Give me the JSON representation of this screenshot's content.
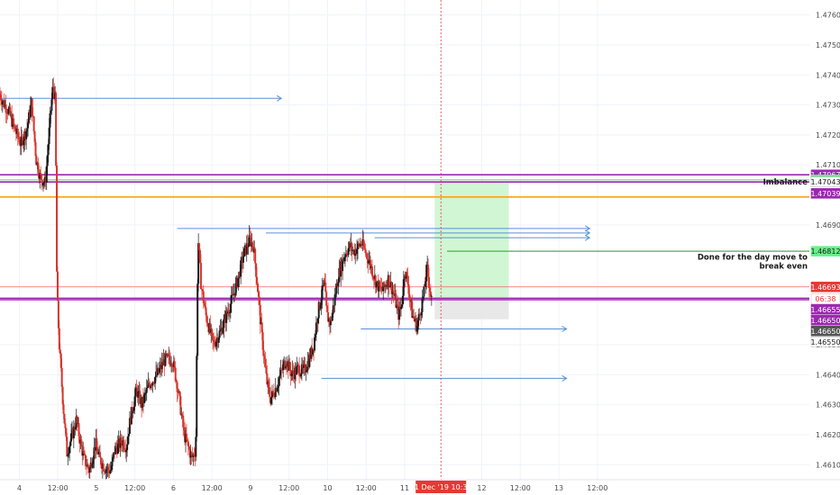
{
  "chart_data": {
    "type": "candlestick",
    "y_axis": {
      "range": [
        1.4605,
        1.4765
      ],
      "ticks": [
        {
          "value": 1.476,
          "label": "1.47600"
        },
        {
          "value": 1.475,
          "label": "1.47500"
        },
        {
          "value": 1.474,
          "label": "1.47400"
        },
        {
          "value": 1.473,
          "label": "1.47300"
        },
        {
          "value": 1.472,
          "label": "1.47200"
        },
        {
          "value": 1.471,
          "label": "1.47100"
        },
        {
          "value": 1.469,
          "label": "1.46900"
        },
        {
          "value": 1.465,
          "label": "1.46500"
        },
        {
          "value": 1.464,
          "label": "1.46400"
        },
        {
          "value": 1.463,
          "label": "1.46300"
        },
        {
          "value": 1.462,
          "label": "1.46200"
        },
        {
          "value": 1.461,
          "label": "1.46100"
        }
      ]
    },
    "x_axis": {
      "range": [
        0,
        10.5
      ],
      "ticks": [
        {
          "t": 0.25,
          "label": "4"
        },
        {
          "t": 0.75,
          "label": "12:00"
        },
        {
          "t": 1.25,
          "label": "5"
        },
        {
          "t": 1.75,
          "label": "12:00"
        },
        {
          "t": 2.25,
          "label": "6"
        },
        {
          "t": 2.75,
          "label": "12:00"
        },
        {
          "t": 3.25,
          "label": "9"
        },
        {
          "t": 3.75,
          "label": "12:00"
        },
        {
          "t": 4.25,
          "label": "10"
        },
        {
          "t": 4.75,
          "label": "12:00"
        },
        {
          "t": 5.25,
          "label": "11"
        },
        {
          "t": 6.25,
          "label": "12"
        },
        {
          "t": 6.75,
          "label": "12:00"
        },
        {
          "t": 7.25,
          "label": "13"
        },
        {
          "t": 7.75,
          "label": "12:00"
        }
      ],
      "cursor": {
        "t": 5.72,
        "label": "11 Dec '19   10:30"
      }
    },
    "price_path": [
      [
        0.0,
        1.4734
      ],
      [
        0.05,
        1.4731
      ],
      [
        0.12,
        1.4728
      ],
      [
        0.2,
        1.4722
      ],
      [
        0.28,
        1.4717
      ],
      [
        0.36,
        1.4722
      ],
      [
        0.42,
        1.4731
      ],
      [
        0.48,
        1.4712
      ],
      [
        0.53,
        1.4706
      ],
      [
        0.6,
        1.4704
      ],
      [
        0.66,
        1.4725
      ],
      [
        0.7,
        1.4737
      ],
      [
        0.73,
        1.4731
      ],
      [
        0.75,
        1.4668
      ],
      [
        0.78,
        1.465
      ],
      [
        0.83,
        1.463
      ],
      [
        0.88,
        1.4614
      ],
      [
        0.95,
        1.462
      ],
      [
        1.0,
        1.4625
      ],
      [
        1.05,
        1.4618
      ],
      [
        1.1,
        1.4612
      ],
      [
        1.17,
        1.4608
      ],
      [
        1.25,
        1.4617
      ],
      [
        1.3,
        1.4612
      ],
      [
        1.37,
        1.4609
      ],
      [
        1.45,
        1.4608
      ],
      [
        1.5,
        1.4615
      ],
      [
        1.6,
        1.4618
      ],
      [
        1.65,
        1.4616
      ],
      [
        1.7,
        1.4625
      ],
      [
        1.78,
        1.4635
      ],
      [
        1.85,
        1.463
      ],
      [
        1.95,
        1.4637
      ],
      [
        2.05,
        1.464
      ],
      [
        2.15,
        1.4645
      ],
      [
        2.25,
        1.4645
      ],
      [
        2.32,
        1.4635
      ],
      [
        2.4,
        1.462
      ],
      [
        2.5,
        1.4612
      ],
      [
        2.55,
        1.4615
      ],
      [
        2.58,
        1.4686
      ],
      [
        2.62,
        1.467
      ],
      [
        2.68,
        1.466
      ],
      [
        2.78,
        1.465
      ],
      [
        2.88,
        1.4655
      ],
      [
        2.95,
        1.466
      ],
      [
        3.02,
        1.4665
      ],
      [
        3.1,
        1.4672
      ],
      [
        3.17,
        1.468
      ],
      [
        3.25,
        1.4685
      ],
      [
        3.3,
        1.4683
      ],
      [
        3.35,
        1.467
      ],
      [
        3.4,
        1.4655
      ],
      [
        3.47,
        1.4638
      ],
      [
        3.52,
        1.4632
      ],
      [
        3.58,
        1.4635
      ],
      [
        3.65,
        1.464
      ],
      [
        3.72,
        1.4645
      ],
      [
        3.8,
        1.464
      ],
      [
        3.88,
        1.4642
      ],
      [
        3.95,
        1.4641
      ],
      [
        4.02,
        1.4645
      ],
      [
        4.08,
        1.465
      ],
      [
        4.13,
        1.466
      ],
      [
        4.17,
        1.4665
      ],
      [
        4.22,
        1.4671
      ],
      [
        4.25,
        1.466
      ],
      [
        4.3,
        1.4657
      ],
      [
        4.35,
        1.4665
      ],
      [
        4.4,
        1.4673
      ],
      [
        4.48,
        1.468
      ],
      [
        4.55,
        1.4683
      ],
      [
        4.6,
        1.4681
      ],
      [
        4.7,
        1.4684
      ],
      [
        4.8,
        1.4678
      ],
      [
        4.9,
        1.467
      ],
      [
        4.97,
        1.4668
      ],
      [
        5.05,
        1.4672
      ],
      [
        5.12,
        1.4667
      ],
      [
        5.18,
        1.466
      ],
      [
        5.22,
        1.4663
      ],
      [
        5.26,
        1.4675
      ],
      [
        5.3,
        1.4671
      ],
      [
        5.36,
        1.466
      ],
      [
        5.42,
        1.4656
      ],
      [
        5.47,
        1.4662
      ],
      [
        5.51,
        1.4667
      ],
      [
        5.55,
        1.4676
      ],
      [
        5.58,
        1.467
      ],
      [
        5.61,
        1.4665
      ]
    ],
    "horizontal_lines": [
      {
        "price": 1.47067,
        "color": "#9c27b0",
        "width": 1.6
      },
      {
        "price": 1.47043,
        "color": "#9c27b0",
        "width": 1.6
      },
      {
        "price": 1.4705,
        "color": "#4caf50",
        "width": 0.7
      },
      {
        "price": 1.46993,
        "color": "#ff9800",
        "width": 1.6
      },
      {
        "price": 1.46693,
        "color": "#f44336",
        "width": 0.7
      },
      {
        "price": 1.46655,
        "color": "#9c27b0",
        "width": 1.6
      },
      {
        "price": 1.4665,
        "color": "#9c27b0",
        "width": 1.2
      }
    ],
    "rays": [
      {
        "t1": 0.0,
        "t2": 3.65,
        "price": 1.47322,
        "color": "#5b8fd6"
      },
      {
        "t1": 2.3,
        "t2": 7.65,
        "price": 1.46888,
        "color": "#5b8fd6"
      },
      {
        "t1": 3.45,
        "t2": 7.65,
        "price": 1.46873,
        "color": "#5b8fd6"
      },
      {
        "t1": 4.86,
        "t2": 7.65,
        "price": 1.46857,
        "color": "#5b8fd6"
      },
      {
        "t1": 4.68,
        "t2": 7.35,
        "price": 1.46553,
        "color": "#5b8fd6"
      },
      {
        "t1": 4.17,
        "t2": 7.35,
        "price": 1.46388,
        "color": "#5b8fd6"
      }
    ],
    "position": {
      "t1": 5.64,
      "t2": 6.6,
      "entry": 1.46655,
      "target": 1.47043,
      "stop": 1.46585,
      "target_color": "#ccf5cf",
      "stop_color": "#e6e6e6"
    },
    "annotation_line": {
      "t1": 5.8,
      "t2": 7.2,
      "price": 1.46812,
      "color": "#4caf50"
    },
    "price_labels": [
      {
        "price": 1.47067,
        "text": "1.47067",
        "bg": "#9c27b0",
        "fg": "#ffffff"
      },
      {
        "price": 1.4705,
        "text": "1.47050",
        "bg": "#69f08a",
        "fg": "#1a1a1a"
      },
      {
        "price": 1.47043,
        "text": "1.47043",
        "bg": "#ffffff",
        "fg": "#1a1a1a"
      },
      {
        "price": 1.47005,
        "text": "1.47039",
        "bg": "#9c27b0",
        "fg": "#ffffff"
      },
      {
        "price": 1.46812,
        "text": "1.46812",
        "bg": "#69f08a",
        "fg": "#1a1a1a"
      },
      {
        "price": 1.46693,
        "text": "1.46693",
        "bg": "#e53935",
        "fg": "#ffffff"
      },
      {
        "price": 1.46653,
        "text": "06:38",
        "bg": "#ffffff",
        "fg": "#e53935"
      },
      {
        "price": 1.46618,
        "text": "1.46655",
        "bg": "#9c27b0",
        "fg": "#ffffff"
      },
      {
        "price": 1.46582,
        "text": "1.46650",
        "bg": "#9c27b0",
        "fg": "#ffffff"
      },
      {
        "price": 1.46546,
        "text": "1.46650",
        "bg": "#555555",
        "fg": "#ffffff"
      },
      {
        "price": 1.4651,
        "text": "1.46550",
        "bg": "#ffffff",
        "fg": "#1a1a1a"
      }
    ],
    "annotations": [
      {
        "text": "Imbalance",
        "price": 1.47043
      },
      {
        "text": "Done for the day move to",
        "price": 1.46793
      },
      {
        "text": "break even",
        "price": 1.46763
      }
    ],
    "colors": {
      "up": "#1a1a1a",
      "down": "#d9342b",
      "grid": "#f0f3fa"
    }
  }
}
